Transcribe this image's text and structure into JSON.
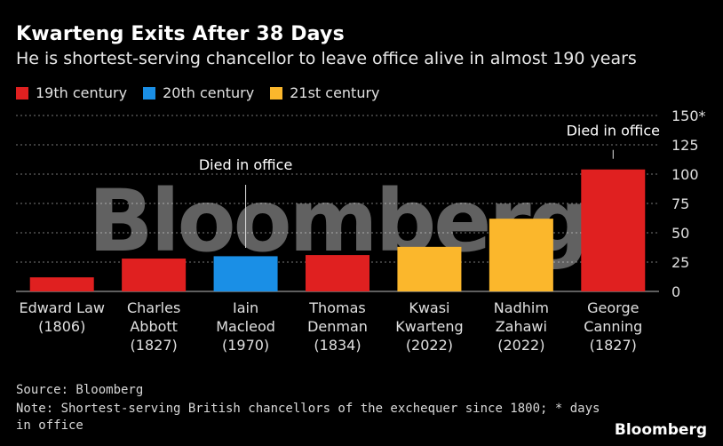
{
  "title": "Kwarteng Exits After 38 Days",
  "subtitle": "He is shortest-serving chancellor to leave office alive in almost 190 years",
  "legend": [
    {
      "label": "19th century",
      "color": "#e02020"
    },
    {
      "label": "20th century",
      "color": "#1a8fe6"
    },
    {
      "label": "21st century",
      "color": "#fbb72c"
    }
  ],
  "source": "Source: Bloomberg",
  "note": "Note: Shortest-serving British chancellors of the exchequer since 1800; * days in office",
  "brand": "Bloomberg",
  "watermark": "Bloomberg",
  "chart_data": {
    "type": "bar",
    "ylim": [
      0,
      150
    ],
    "yticks": [
      0,
      25,
      50,
      75,
      100,
      125
    ],
    "ytick_top_label": "150*",
    "categories": [
      {
        "name": "Edward Law",
        "line2": "(1806)",
        "line3": ""
      },
      {
        "name": "Charles",
        "line2": "Abbott",
        "line3": "(1827)"
      },
      {
        "name": "Iain",
        "line2": "Macleod",
        "line3": "(1970)"
      },
      {
        "name": "Thomas",
        "line2": "Denman",
        "line3": "(1834)"
      },
      {
        "name": "Kwasi",
        "line2": "Kwarteng",
        "line3": "(2022)"
      },
      {
        "name": "Nadhim",
        "line2": "Zahawi",
        "line3": "(2022)"
      },
      {
        "name": "George",
        "line2": "Canning",
        "line3": "(1827)"
      }
    ],
    "values": [
      12,
      28,
      30,
      31,
      38,
      62,
      104
    ],
    "century": [
      "19th century",
      "19th century",
      "20th century",
      "19th century",
      "21st century",
      "21st century",
      "19th century"
    ],
    "annotations": [
      {
        "bar_index": 2,
        "text": "Died in office"
      },
      {
        "bar_index": 6,
        "text": "Died in office"
      }
    ],
    "grid": true
  }
}
